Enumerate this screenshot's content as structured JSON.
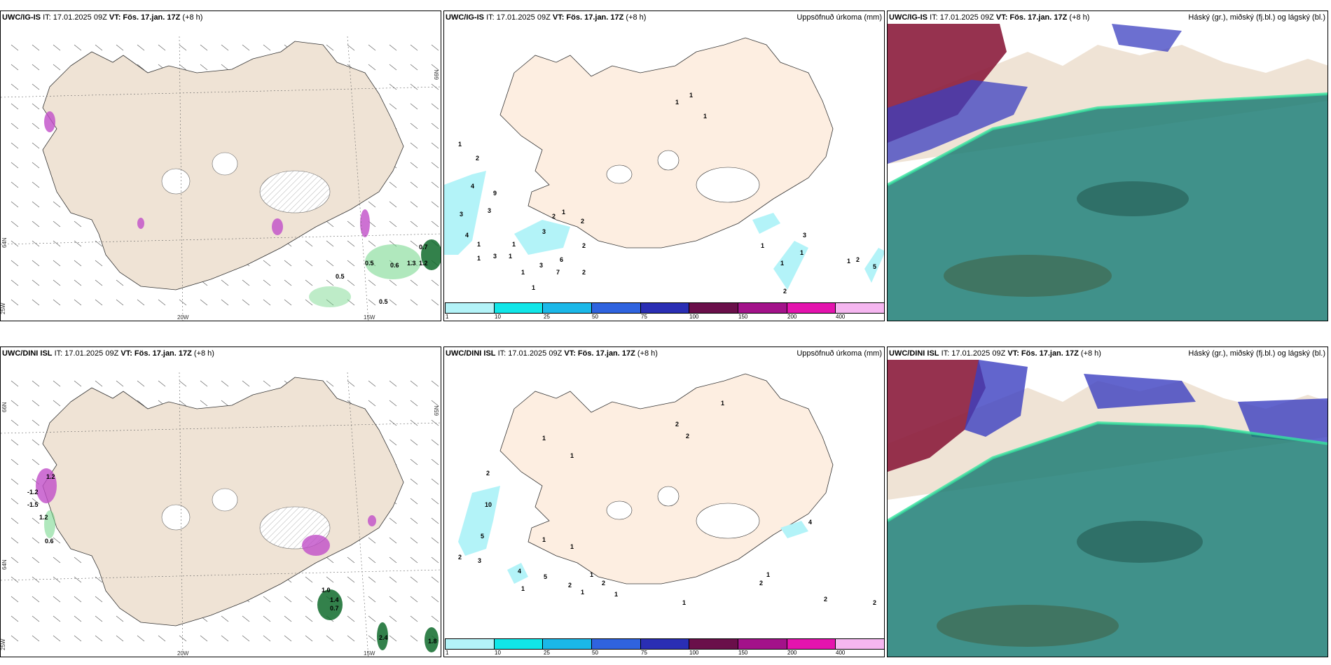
{
  "panels": [
    {
      "model": "UWC/IG-IS",
      "init_prefix": "IT: 17.01.2025 09Z",
      "valid_prefix": "VT:",
      "valid": "Fös. 17.jan. 17Z",
      "lead": "(+8 h)",
      "right_title": "",
      "value_labels": [
        "0.5",
        "0.6",
        "0.7",
        "0.5",
        "0.5",
        "1.3",
        "1.2"
      ]
    },
    {
      "model": "UWC/IG-IS",
      "init_prefix": "IT: 17.01.2025 09Z",
      "valid_prefix": "VT:",
      "valid": "Fös. 17.jan. 17Z",
      "lead": "(+8 h)",
      "right_title": "Uppsöfnuð úrkoma (mm)",
      "value_labels": [
        "1",
        "1",
        "1",
        "2",
        "4",
        "3",
        "3",
        "4",
        "1",
        "1",
        "3",
        "1",
        "1",
        "3",
        "2",
        "3",
        "6",
        "7",
        "2",
        "1",
        "1",
        "1",
        "3",
        "1",
        "2",
        "1",
        "5",
        "2",
        "3",
        "1",
        "1",
        "2",
        "1",
        "2",
        "9"
      ]
    },
    {
      "model": "UWC/IG-IS",
      "init_prefix": "IT: 17.01.2025 09Z",
      "valid_prefix": "VT:",
      "valid": "Fös. 17.jan. 17Z",
      "lead": "(+8 h)",
      "right_title": "Háský (gr.), miðský (fj.bl.) og lágský (bl.)"
    },
    {
      "model": "UWC/DINI ISL",
      "init_prefix": "IT: 17.01.2025 09Z",
      "valid_prefix": "VT:",
      "valid": "Fös. 17.jan. 17Z",
      "lead": "(+8 h)",
      "right_title": "",
      "value_labels": [
        "1.2",
        "-1.2",
        "-1.5",
        "1.2",
        "0.6",
        "1.0",
        "1.4",
        "0.7",
        "2.4",
        "1.8"
      ]
    },
    {
      "model": "UWC/DINI ISL",
      "init_prefix": "IT: 17.01.2025 09Z",
      "valid_prefix": "VT:",
      "valid": "Fös. 17.jan. 17Z",
      "lead": "(+8 h)",
      "right_title": "Uppsöfnuð úrkoma (mm)",
      "value_labels": [
        "2",
        "2",
        "1",
        "2",
        "10",
        "1",
        "1",
        "5",
        "2",
        "3",
        "4",
        "5",
        "1",
        "1",
        "1",
        "2",
        "2",
        "1",
        "1",
        "1",
        "1",
        "2",
        "1",
        "4",
        "2",
        "2"
      ]
    },
    {
      "model": "UWC/DINI ISL",
      "init_prefix": "IT: 17.01.2025 09Z",
      "valid_prefix": "VT:",
      "valid": "Fös. 17.jan. 17Z",
      "lead": "(+8 h)",
      "right_title": "Háský (gr.), miðský (fj.bl.) og lágský (bl.)"
    }
  ],
  "grid_labels": {
    "lon_25w": "25W",
    "lon_20w": "20W",
    "lon_15w": "15W",
    "lat_64n": "64N",
    "lat_65n": "65N",
    "lat_66n": "66N"
  },
  "legend": {
    "ticks": [
      "1",
      "10",
      "25",
      "50",
      "75",
      "100",
      "150",
      "200",
      "400"
    ],
    "colors": [
      "#b3f3f8",
      "#11e6e8",
      "#1bb8e8",
      "#2f63df",
      "#2a2eb4",
      "#6a0f4a",
      "#a3128a",
      "#e413ae",
      "#f5b6f0"
    ]
  },
  "colors": {
    "land": "#efe3d5",
    "land_plain": "#fdeee1",
    "snow": "#f4f4f4",
    "hatch_pink": "#c14dc8",
    "green_precip": "#6fd586",
    "cloud_high": "#8b1c3c",
    "cloud_mid": "#3b3fc0",
    "cloud_low": "#1e7e76"
  }
}
